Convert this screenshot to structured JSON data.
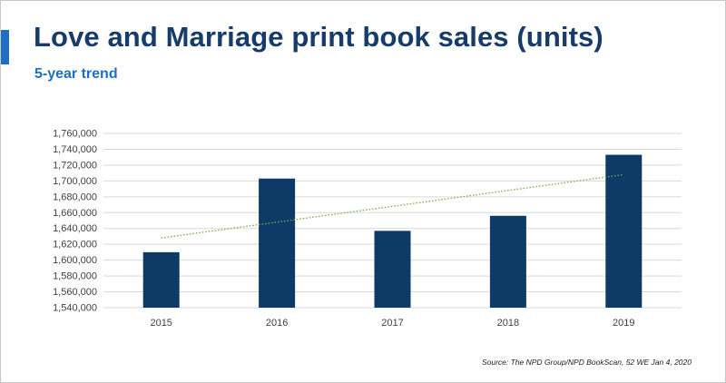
{
  "header": {
    "title": "Love and Marriage print book sales (units)",
    "subtitle": "5-year trend"
  },
  "footer": {
    "source": "Source: The NPD Group/NPD BookScan, 52 WE Jan 4, 2020"
  },
  "colors": {
    "bar": "#0d3a66",
    "trendline": "#70ad47",
    "title": "#153c6a",
    "subtitle": "#1f6fc0",
    "gridline": "#d9d9d9"
  },
  "chart_data": {
    "type": "bar",
    "categories": [
      "2015",
      "2016",
      "2017",
      "2018",
      "2019"
    ],
    "values": [
      1610000,
      1703000,
      1637000,
      1656000,
      1733000
    ],
    "ylim": [
      1540000,
      1760000
    ],
    "yticks": [
      1540000,
      1560000,
      1580000,
      1600000,
      1620000,
      1640000,
      1660000,
      1680000,
      1700000,
      1720000,
      1740000,
      1760000
    ],
    "ytick_labels": [
      "1,540,000",
      "1,560,000",
      "1,580,000",
      "1,600,000",
      "1,620,000",
      "1,640,000",
      "1,660,000",
      "1,680,000",
      "1,700,000",
      "1,720,000",
      "1,740,000",
      "1,760,000"
    ],
    "trendline": {
      "type": "linear",
      "style": "dotted",
      "start": 1628000,
      "end": 1708000
    },
    "grid": true,
    "legend": "none"
  }
}
